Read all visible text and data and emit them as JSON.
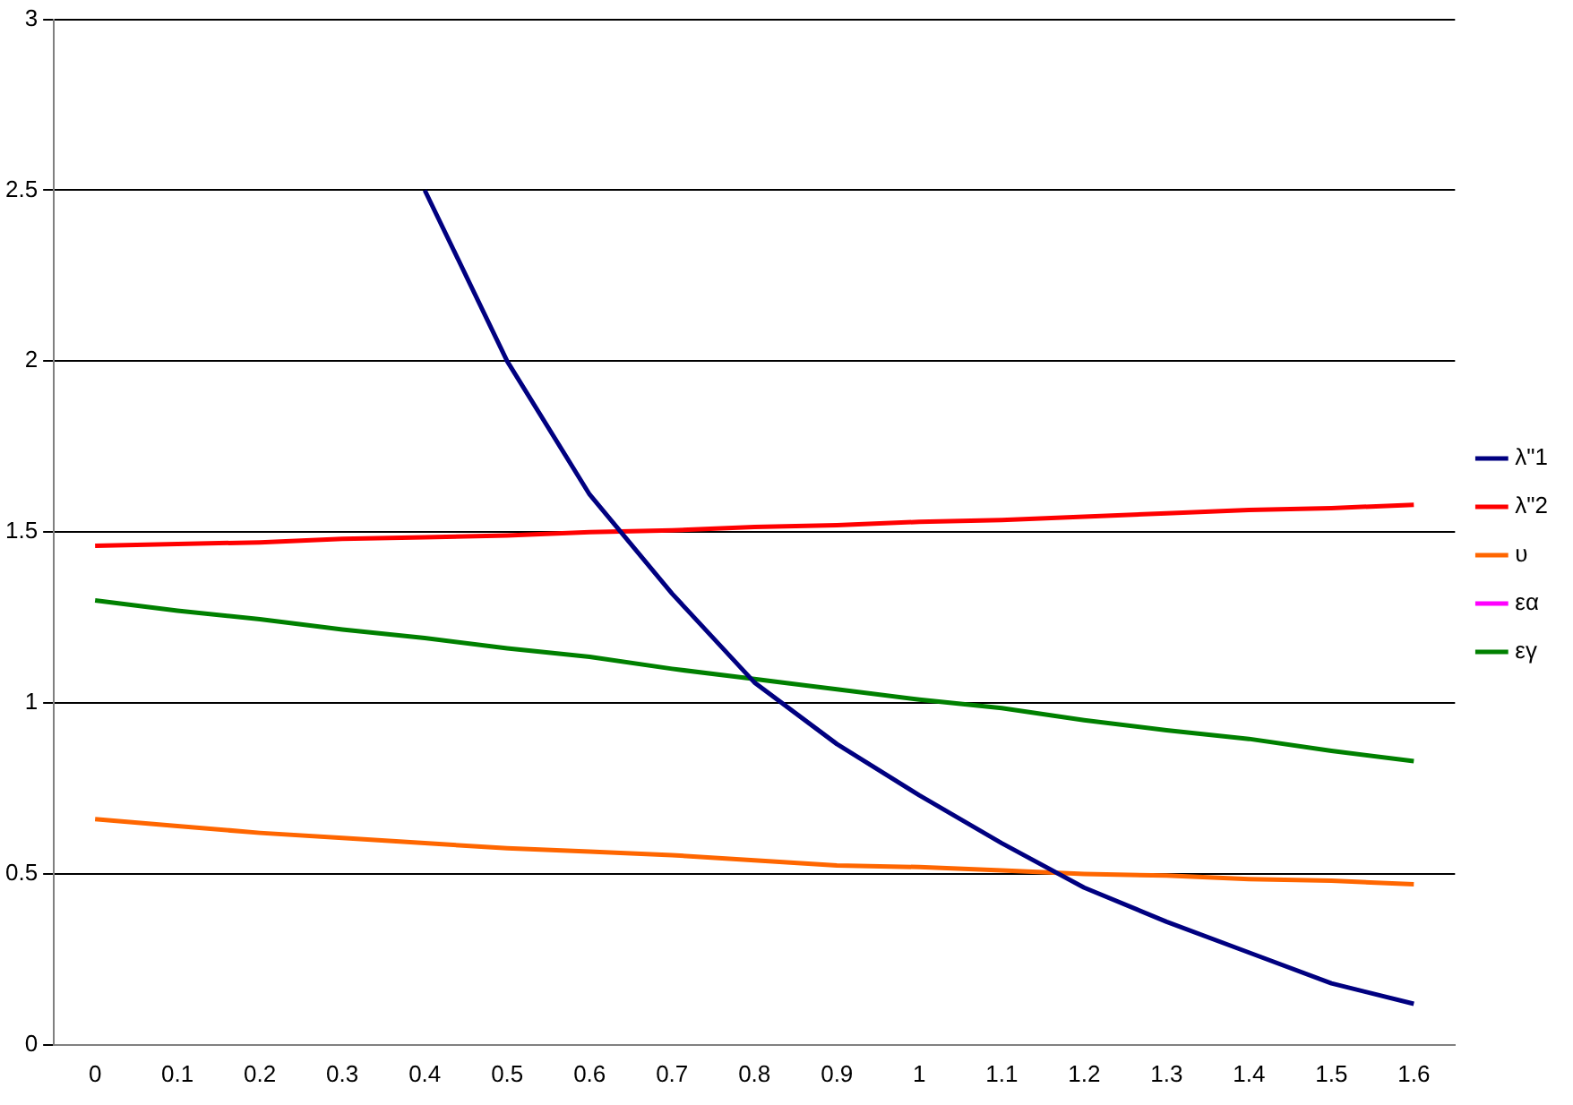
{
  "chart_data": {
    "type": "line",
    "categories": [
      "0",
      "0.1",
      "0.2",
      "0.3",
      "0.4",
      "0.5",
      "0.6",
      "0.7",
      "0.8",
      "0.9",
      "1",
      "1.1",
      "1.2",
      "1.3",
      "1.4",
      "1.5",
      "1.6"
    ],
    "ylim": [
      0,
      3
    ],
    "yticks": [
      0,
      0.5,
      1,
      1.5,
      2,
      2.5,
      3
    ],
    "grid": "y",
    "legend": "right",
    "marker": "none",
    "line_style": "solid",
    "series": [
      {
        "name": "λ\"1",
        "color": "#000080",
        "values": [
          null,
          null,
          null,
          null,
          2.5,
          2.0,
          1.61,
          1.32,
          1.06,
          0.88,
          0.73,
          0.59,
          0.46,
          0.36,
          0.27,
          0.18,
          0.12
        ]
      },
      {
        "name": "λ\"2",
        "color": "#ff0000",
        "values": [
          1.46,
          1.465,
          1.47,
          1.48,
          1.485,
          1.49,
          1.5,
          1.505,
          1.515,
          1.52,
          1.53,
          1.535,
          1.545,
          1.555,
          1.565,
          1.57,
          1.58
        ]
      },
      {
        "name": "υ",
        "color": "#ff6600",
        "values": [
          0.66,
          0.64,
          0.62,
          0.605,
          0.59,
          0.575,
          0.565,
          0.555,
          0.54,
          0.525,
          0.52,
          0.51,
          0.5,
          0.495,
          0.485,
          0.48,
          0.47
        ]
      },
      {
        "name": "εα",
        "color": "#ff00ff",
        "values": [
          null,
          null,
          null,
          null,
          null,
          null,
          null,
          null,
          null,
          null,
          null,
          null,
          null,
          null,
          null,
          null,
          null
        ]
      },
      {
        "name": "εγ",
        "color": "#008000",
        "values": [
          1.3,
          1.27,
          1.245,
          1.215,
          1.19,
          1.16,
          1.135,
          1.1,
          1.07,
          1.04,
          1.01,
          0.985,
          0.95,
          0.92,
          0.895,
          0.86,
          0.83
        ]
      }
    ]
  }
}
